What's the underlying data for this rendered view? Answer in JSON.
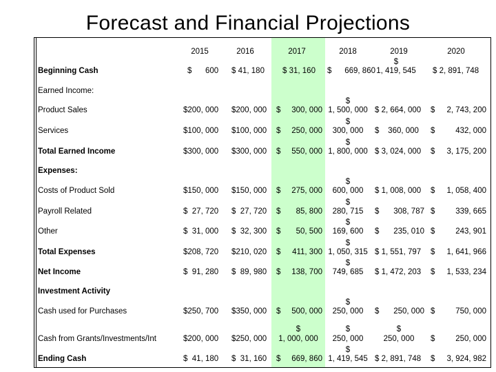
{
  "title": "Forecast and Financial Projections",
  "colors": {
    "highlight_2017": "#ccffcc",
    "grid": "#000000",
    "text": "#000000"
  },
  "years": [
    "2015",
    "2016",
    "2017",
    "2018",
    "2019",
    "2020"
  ],
  "rows": {
    "beginning_cash": {
      "label": "Beginning Cash",
      "y2015_sym": "$",
      "y2015_val": "600",
      "y2016": "$  41, 180",
      "y2017": "$  31, 160",
      "y2018_sym": "$",
      "y2018_val": "669, 860",
      "y2019_top": "$",
      "y2019_bottom": "1, 419, 545",
      "y2020": "$  2, 891, 748"
    },
    "earned_income_header": "Earned Income:",
    "product_sales": {
      "label": "Product Sales",
      "y2015": "$200, 000",
      "y2016": "$200, 000",
      "y2017_sym": "$",
      "y2017_val": "300, 000",
      "y2018_top": "$",
      "y2018_bottom": "1, 500, 000",
      "y2019": "$  2, 664, 000",
      "y2020_sym": "$",
      "y2020_val": "2, 743, 200"
    },
    "services": {
      "label": "Services",
      "y2015": "$100, 000",
      "y2016": "$100, 000",
      "y2017_sym": "$",
      "y2017_val": "250, 000",
      "y2018_top": "$",
      "y2018_bottom": "300, 000",
      "y2019": "$    360, 000",
      "y2020_sym": "$",
      "y2020_val": "432, 000"
    },
    "total_earned": {
      "label": "Total Earned Income",
      "y2015": "$300, 000",
      "y2016": "$300, 000",
      "y2017_sym": "$",
      "y2017_val": "550, 000",
      "y2018_top": "$",
      "y2018_bottom": "1, 800, 000",
      "y2019": "$  3, 024, 000",
      "y2020_sym": "$",
      "y2020_val": "3, 175, 200"
    },
    "expenses_header": "Expenses:",
    "cogs": {
      "label": "Costs of Product Sold",
      "y2015": "$150, 000",
      "y2016": "$150, 000",
      "y2017_sym": "$",
      "y2017_val": "275, 000",
      "y2018_top": "$",
      "y2018_bottom": "600, 000",
      "y2019": "$  1, 008, 000",
      "y2020_sym": "$",
      "y2020_val": "1, 058, 400"
    },
    "payroll": {
      "label": "Payroll Related",
      "y2015": "$  27, 720",
      "y2016": "$  27, 720",
      "y2017_sym": "$",
      "y2017_val": "85, 800",
      "y2018_top": "$",
      "y2018_bottom": "280, 715",
      "y2019_sym": "$",
      "y2019_val": "308, 787",
      "y2020_sym": "$",
      "y2020_val": "339, 665"
    },
    "other": {
      "label": "Other",
      "y2015": "$  31, 000",
      "y2016": "$  32, 300",
      "y2017_sym": "$",
      "y2017_val": "50, 500",
      "y2018_top": "$",
      "y2018_bottom": "169, 600",
      "y2019_sym": "$",
      "y2019_val": "235, 010",
      "y2020_sym": "$",
      "y2020_val": "243, 901"
    },
    "total_expenses": {
      "label": "Total Expenses",
      "y2015": "$208, 720",
      "y2016": "$210, 020",
      "y2017_sym": "$",
      "y2017_val": "411, 300",
      "y2018_top": "$",
      "y2018_bottom": "1, 050, 315",
      "y2019": "$  1, 551, 797",
      "y2020_sym": "$",
      "y2020_val": "1, 641, 966"
    },
    "net_income": {
      "label": "Net Income",
      "y2015": "$  91, 280",
      "y2016": "$  89, 980",
      "y2017_sym": "$",
      "y2017_val": "138, 700",
      "y2018_top": "$",
      "y2018_bottom": "749, 685",
      "y2019": "$  1, 472, 203",
      "y2020_sym": "$",
      "y2020_val": "1, 533, 234"
    },
    "investment_header": "Investment Activity",
    "cash_purchases": {
      "label": "Cash used for Purchases",
      "y2015": "$250, 700",
      "y2016": "$350, 000",
      "y2017_sym": "$",
      "y2017_val": "500, 000",
      "y2018_top": "$",
      "y2018_bottom": "250, 000",
      "y2019_sym": "$",
      "y2019_val": "250, 000",
      "y2020_sym": "$",
      "y2020_val": "750, 000"
    },
    "cash_grants": {
      "label": "Cash from Grants/Investments/Int",
      "y2015": "$200, 000",
      "y2016": "$250, 000",
      "y2017_top": "$",
      "y2017_bottom": "1, 000, 000",
      "y2018_top": "$",
      "y2018_bottom": "250, 000",
      "y2019_top": "$",
      "y2019_bottom": "250, 000",
      "y2020_sym": "$",
      "y2020_val": "250, 000"
    },
    "ending_cash": {
      "label": "Ending Cash",
      "y2015": "$  41, 180",
      "y2016": "$  31, 160",
      "y2017_sym": "$",
      "y2017_val": "669, 860",
      "y2018_top": "$",
      "y2018_bottom": "1, 419, 545",
      "y2019": "$  2, 891, 748",
      "y2020_sym": "$",
      "y2020_val": "3, 924, 982"
    }
  }
}
